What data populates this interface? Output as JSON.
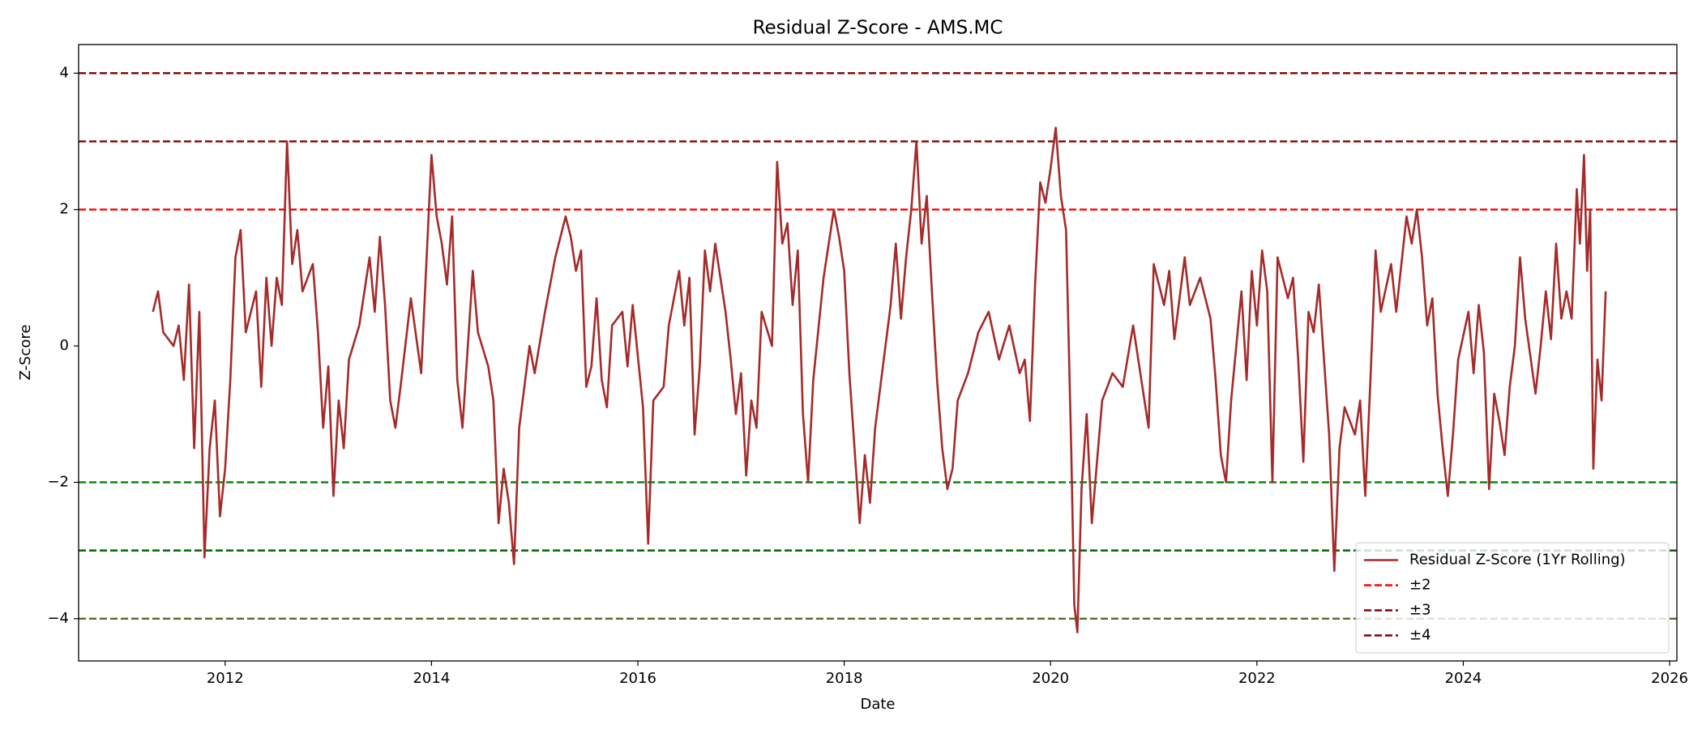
{
  "chart_data": {
    "type": "line",
    "title": "Residual Z-Score - AMS.MC",
    "xlabel": "Date",
    "ylabel": "Z-Score",
    "xlim": [
      2010.58,
      2026.07
    ],
    "ylim": [
      -4.62,
      4.42
    ],
    "xticks": [
      2012,
      2014,
      2016,
      2018,
      2020,
      2022,
      2024,
      2026
    ],
    "yticks": [
      {
        "value": -4,
        "label": "−4"
      },
      {
        "value": -2,
        "label": "−2"
      },
      0,
      2,
      4
    ],
    "grid": false,
    "legend": "lower right",
    "x": [
      2011.3,
      2011.35,
      2011.4,
      2011.5,
      2011.55,
      2011.6,
      2011.65,
      2011.7,
      2011.75,
      2011.8,
      2011.85,
      2011.9,
      2011.95,
      2012.0,
      2012.05,
      2012.1,
      2012.15,
      2012.2,
      2012.3,
      2012.35,
      2012.4,
      2012.45,
      2012.5,
      2012.55,
      2012.6,
      2012.65,
      2012.7,
      2012.75,
      2012.85,
      2012.9,
      2012.95,
      2013.0,
      2013.05,
      2013.1,
      2013.15,
      2013.2,
      2013.3,
      2013.4,
      2013.45,
      2013.5,
      2013.55,
      2013.6,
      2013.65,
      2013.7,
      2013.8,
      2013.9,
      2014.0,
      2014.05,
      2014.1,
      2014.15,
      2014.2,
      2014.25,
      2014.3,
      2014.4,
      2014.45,
      2014.55,
      2014.6,
      2014.65,
      2014.7,
      2014.75,
      2014.8,
      2014.85,
      2014.95,
      2015.0,
      2015.1,
      2015.2,
      2015.3,
      2015.35,
      2015.4,
      2015.45,
      2015.5,
      2015.55,
      2015.6,
      2015.65,
      2015.7,
      2015.75,
      2015.85,
      2015.9,
      2015.95,
      2016.05,
      2016.1,
      2016.15,
      2016.25,
      2016.3,
      2016.4,
      2016.45,
      2016.5,
      2016.55,
      2016.6,
      2016.65,
      2016.7,
      2016.75,
      2016.85,
      2016.9,
      2016.95,
      2017.0,
      2017.05,
      2017.1,
      2017.15,
      2017.2,
      2017.3,
      2017.35,
      2017.4,
      2017.45,
      2017.5,
      2017.55,
      2017.6,
      2017.65,
      2017.7,
      2017.8,
      2017.9,
      2017.95,
      2018.0,
      2018.05,
      2018.1,
      2018.15,
      2018.2,
      2018.25,
      2018.3,
      2018.35,
      2018.45,
      2018.5,
      2018.55,
      2018.6,
      2018.65,
      2018.7,
      2018.75,
      2018.8,
      2018.85,
      2018.9,
      2018.95,
      2019.0,
      2019.05,
      2019.1,
      2019.2,
      2019.3,
      2019.4,
      2019.5,
      2019.6,
      2019.7,
      2019.75,
      2019.8,
      2019.85,
      2019.9,
      2019.95,
      2020.0,
      2020.05,
      2020.1,
      2020.15,
      2020.2,
      2020.23,
      2020.26,
      2020.3,
      2020.35,
      2020.4,
      2020.5,
      2020.6,
      2020.7,
      2020.8,
      2020.9,
      2020.95,
      2021.0,
      2021.1,
      2021.15,
      2021.2,
      2021.3,
      2021.35,
      2021.45,
      2021.55,
      2021.6,
      2021.65,
      2021.7,
      2021.75,
      2021.85,
      2021.9,
      2021.95,
      2022.0,
      2022.05,
      2022.1,
      2022.15,
      2022.2,
      2022.3,
      2022.35,
      2022.4,
      2022.45,
      2022.5,
      2022.55,
      2022.6,
      2022.7,
      2022.75,
      2022.8,
      2022.85,
      2022.95,
      2023.0,
      2023.05,
      2023.1,
      2023.15,
      2023.2,
      2023.3,
      2023.35,
      2023.45,
      2023.5,
      2023.55,
      2023.6,
      2023.65,
      2023.7,
      2023.75,
      2023.8,
      2023.85,
      2023.9,
      2023.95,
      2024.05,
      2024.1,
      2024.15,
      2024.2,
      2024.25,
      2024.3,
      2024.35,
      2024.4,
      2024.45,
      2024.5,
      2024.55,
      2024.6,
      2024.7,
      2024.75,
      2024.8,
      2024.85,
      2024.9,
      2024.95,
      2025.0,
      2025.05,
      2025.1,
      2025.13,
      2025.17,
      2025.2,
      2025.23,
      2025.26,
      2025.3,
      2025.34,
      2025.38
    ],
    "series": [
      {
        "name": "Residual Z-Score (1Yr Rolling)",
        "color": "#a52a2a",
        "values": [
          0.5,
          0.8,
          0.2,
          0.0,
          0.3,
          -0.5,
          0.9,
          -1.5,
          0.5,
          -3.1,
          -1.5,
          -0.8,
          -2.5,
          -1.8,
          -0.5,
          1.3,
          1.7,
          0.2,
          0.8,
          -0.6,
          1.0,
          0.0,
          1.0,
          0.6,
          3.0,
          1.2,
          1.7,
          0.8,
          1.2,
          0.2,
          -1.2,
          -0.3,
          -2.2,
          -0.8,
          -1.5,
          -0.2,
          0.3,
          1.3,
          0.5,
          1.6,
          0.6,
          -0.8,
          -1.2,
          -0.6,
          0.7,
          -0.4,
          2.8,
          1.9,
          1.5,
          0.9,
          1.9,
          -0.5,
          -1.2,
          1.1,
          0.2,
          -0.3,
          -0.8,
          -2.6,
          -1.8,
          -2.3,
          -3.2,
          -1.2,
          0.0,
          -0.4,
          0.5,
          1.3,
          1.9,
          1.6,
          1.1,
          1.4,
          -0.6,
          -0.3,
          0.7,
          -0.5,
          -0.9,
          0.3,
          0.5,
          -0.3,
          0.6,
          -0.9,
          -2.9,
          -0.8,
          -0.6,
          0.3,
          1.1,
          0.3,
          1.0,
          -1.3,
          -0.3,
          1.4,
          0.8,
          1.5,
          0.5,
          -0.2,
          -1.0,
          -0.4,
          -1.9,
          -0.8,
          -1.2,
          0.5,
          0.0,
          2.7,
          1.5,
          1.8,
          0.6,
          1.4,
          -1.0,
          -2.0,
          -0.5,
          1.0,
          2.0,
          1.6,
          1.1,
          -0.4,
          -1.5,
          -2.6,
          -1.6,
          -2.3,
          -1.2,
          -0.6,
          0.6,
          1.5,
          0.4,
          1.3,
          2.0,
          3.0,
          1.5,
          2.2,
          0.8,
          -0.5,
          -1.5,
          -2.1,
          -1.8,
          -0.8,
          -0.4,
          0.2,
          0.5,
          -0.2,
          0.3,
          -0.4,
          -0.2,
          -1.1,
          0.9,
          2.4,
          2.1,
          2.6,
          3.2,
          2.2,
          1.7,
          -1.5,
          -3.8,
          -4.2,
          -2.1,
          -1.0,
          -2.6,
          -0.8,
          -0.4,
          -0.6,
          0.3,
          -0.7,
          -1.2,
          1.2,
          0.6,
          1.1,
          0.1,
          1.3,
          0.6,
          1.0,
          0.4,
          -0.5,
          -1.6,
          -2.0,
          -0.8,
          0.8,
          -0.5,
          1.1,
          0.3,
          1.4,
          0.8,
          -2.0,
          1.3,
          0.7,
          1.0,
          -0.2,
          -1.7,
          0.5,
          0.2,
          0.9,
          -1.3,
          -3.3,
          -1.5,
          -0.9,
          -1.3,
          -0.8,
          -2.2,
          -0.5,
          1.4,
          0.5,
          1.2,
          0.5,
          1.9,
          1.5,
          2.0,
          1.3,
          0.3,
          0.7,
          -0.7,
          -1.5,
          -2.2,
          -1.3,
          -0.2,
          0.5,
          -0.4,
          0.6,
          -0.1,
          -2.1,
          -0.7,
          -1.1,
          -1.6,
          -0.6,
          0.0,
          1.3,
          0.4,
          -0.7,
          0.0,
          0.8,
          0.1,
          1.5,
          0.4,
          0.8,
          0.4,
          2.3,
          1.5,
          2.8,
          1.1,
          2.0,
          -1.8,
          -0.2,
          -0.8,
          0.8
        ]
      }
    ],
    "thresholds": [
      {
        "name": "±2",
        "values": [
          2,
          -2
        ],
        "colors": [
          "#ff0000",
          "#008000"
        ]
      },
      {
        "name": "±3",
        "values": [
          3,
          -3
        ],
        "colors": [
          "#8b0000",
          "#006400"
        ]
      },
      {
        "name": "±4",
        "values": [
          4,
          -4
        ],
        "colors": [
          "#800000",
          "#556b2f"
        ]
      }
    ]
  }
}
